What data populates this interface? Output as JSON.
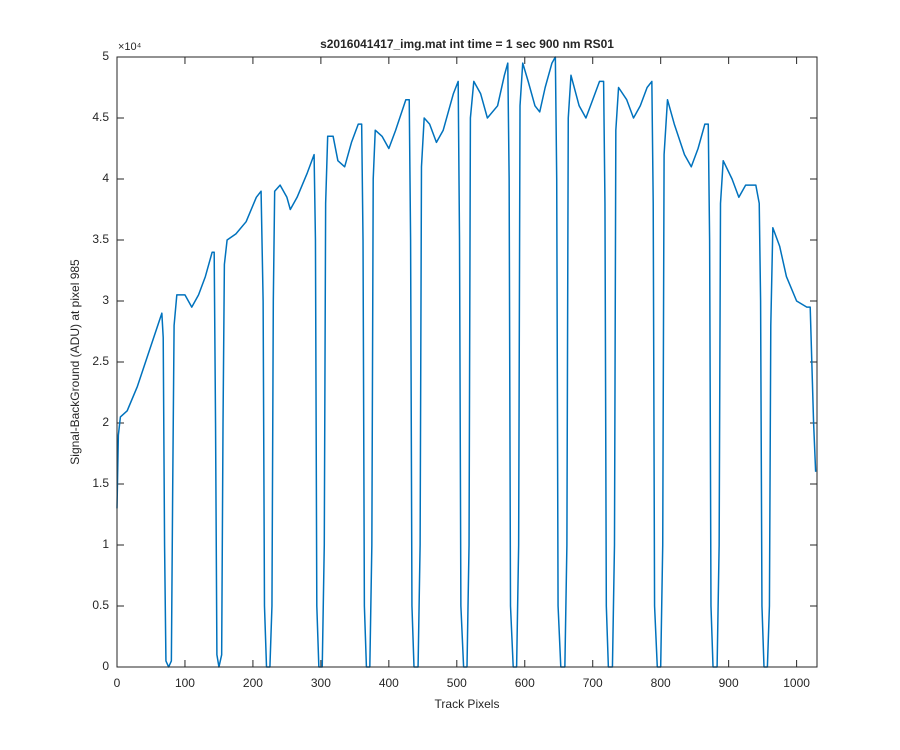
{
  "chart_data": {
    "type": "line",
    "title": "s2016041417_img.mat int time = 1 sec  900 nm RS01",
    "x_label": "Track Pixels",
    "y_label": "Signal-BackGround (ADU) at pixel 985",
    "y_scale_label": "×10⁴",
    "color": "#0072bd",
    "xlim": [
      0,
      1030
    ],
    "ylim": [
      0,
      50000
    ],
    "xticks": [
      0,
      100,
      200,
      300,
      400,
      500,
      600,
      700,
      800,
      900,
      1000
    ],
    "yticks": [
      0,
      {
        "value": 5000,
        "label": "0.5"
      },
      {
        "value": 10000,
        "label": "1"
      },
      {
        "value": 15000,
        "label": "1.5"
      },
      {
        "value": 20000,
        "label": "2"
      },
      {
        "value": 25000,
        "label": "2.5"
      },
      {
        "value": 30000,
        "label": "3"
      },
      {
        "value": 35000,
        "label": "3.5"
      },
      {
        "value": 40000,
        "label": "4"
      },
      {
        "value": 45000,
        "label": "4.5"
      },
      {
        "value": 50000,
        "label": "5"
      }
    ],
    "x": [
      0,
      2,
      5,
      15,
      30,
      45,
      60,
      66,
      68,
      70,
      72,
      76,
      80,
      82,
      84,
      88,
      100,
      110,
      120,
      130,
      140,
      143,
      145,
      147,
      150,
      154,
      156,
      158,
      162,
      175,
      190,
      205,
      212,
      215,
      217,
      220,
      225,
      228,
      230,
      232,
      240,
      250,
      255,
      265,
      280,
      290,
      292,
      294,
      297,
      302,
      305,
      307,
      310,
      318,
      325,
      335,
      345,
      355,
      360,
      362,
      364,
      367,
      372,
      375,
      377,
      380,
      390,
      400,
      410,
      425,
      430,
      432,
      434,
      437,
      443,
      446,
      448,
      452,
      460,
      470,
      480,
      495,
      502,
      504,
      506,
      510,
      515,
      518,
      520,
      525,
      535,
      545,
      560,
      570,
      575,
      577,
      579,
      583,
      588,
      591,
      593,
      597,
      605,
      615,
      622,
      630,
      640,
      645,
      647,
      649,
      653,
      659,
      662,
      664,
      668,
      680,
      690,
      700,
      710,
      716,
      718,
      720,
      723,
      729,
      732,
      734,
      738,
      750,
      760,
      770,
      780,
      787,
      789,
      791,
      795,
      800,
      803,
      805,
      810,
      820,
      835,
      845,
      855,
      865,
      870,
      872,
      874,
      877,
      883,
      886,
      888,
      892,
      905,
      915,
      925,
      940,
      945,
      947,
      949,
      952,
      957,
      960,
      962,
      965,
      975,
      985,
      1000,
      1015,
      1020,
      1025,
      1028
    ],
    "values": [
      13000,
      19000,
      20500,
      21000,
      23000,
      25500,
      28000,
      29000,
      27000,
      10000,
      500,
      0,
      500,
      15000,
      28000,
      30500,
      30500,
      29500,
      30500,
      32000,
      34000,
      34000,
      20000,
      1000,
      0,
      1000,
      20000,
      33000,
      35000,
      35500,
      36500,
      38500,
      39000,
      30000,
      5000,
      0,
      0,
      5000,
      30000,
      39000,
      39500,
      38500,
      37500,
      38500,
      40500,
      42000,
      35000,
      5000,
      0,
      0,
      10000,
      38000,
      43500,
      43500,
      41500,
      41000,
      43000,
      44500,
      44500,
      35000,
      5000,
      0,
      0,
      10000,
      40000,
      44000,
      43500,
      42500,
      44000,
      46500,
      46500,
      35000,
      5000,
      0,
      0,
      10000,
      41000,
      45000,
      44500,
      43000,
      44000,
      47000,
      48000,
      35000,
      5000,
      0,
      0,
      10000,
      45000,
      48000,
      47000,
      45000,
      46000,
      48500,
      49500,
      40000,
      5000,
      0,
      0,
      10000,
      46000,
      49500,
      48000,
      46000,
      45500,
      47500,
      49500,
      50000,
      40000,
      5000,
      0,
      0,
      10000,
      45000,
      48500,
      46000,
      45000,
      46500,
      48000,
      48000,
      38000,
      5000,
      0,
      0,
      10000,
      44000,
      47500,
      46500,
      45000,
      46000,
      47500,
      48000,
      38000,
      5000,
      0,
      0,
      10000,
      42000,
      46500,
      44500,
      42000,
      41000,
      42500,
      44500,
      44500,
      35000,
      5000,
      0,
      0,
      10000,
      38000,
      41500,
      40000,
      38500,
      39500,
      39500,
      38000,
      30000,
      5000,
      0,
      0,
      5000,
      28000,
      36000,
      34500,
      32000,
      30000,
      29500,
      29500,
      20000,
      16000
    ]
  }
}
